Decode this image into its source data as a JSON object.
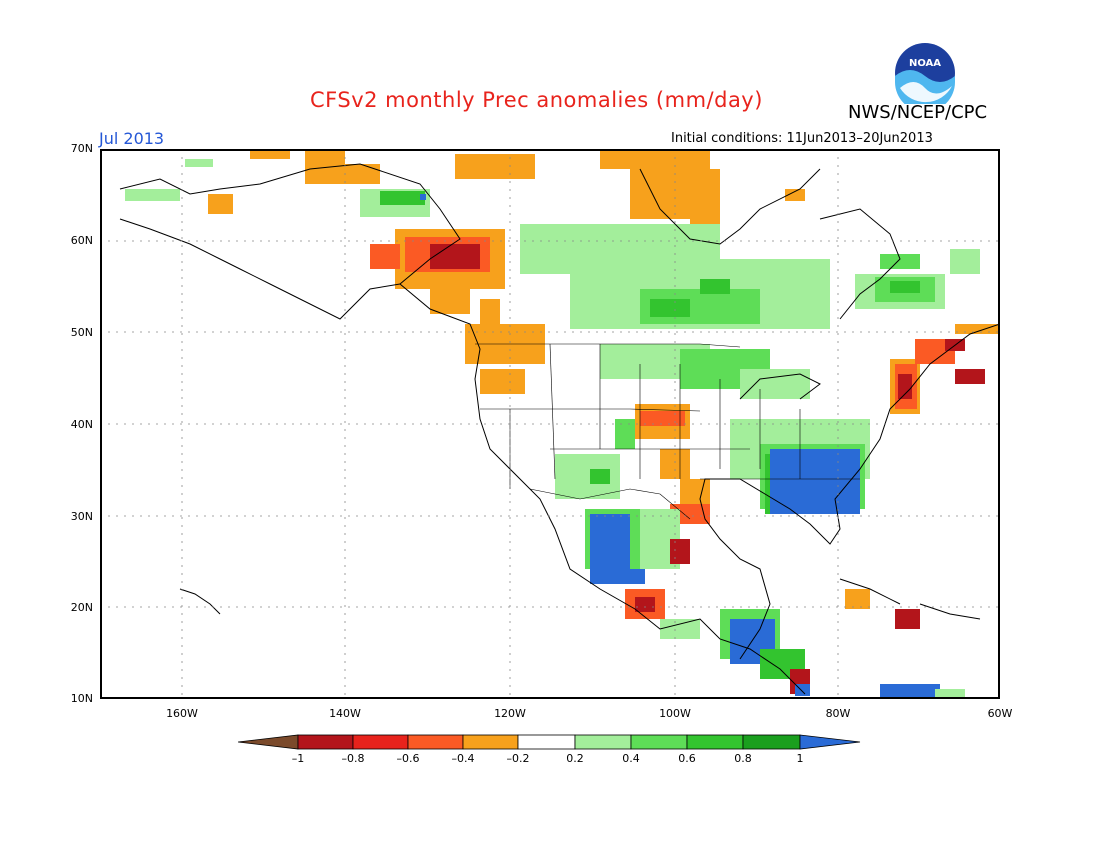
{
  "header": {
    "title": "CFSv2 monthly Prec anomalies (mm/day)",
    "agency": "NWS/NCEP/CPC",
    "month": "Jul 2013",
    "initial_conditions": "Initial conditions: 11Jun2013–20Jun2013",
    "logo_text": "NOAA"
  },
  "map": {
    "lat_labels": [
      "70N",
      "60N",
      "50N",
      "40N",
      "30N",
      "20N",
      "10N"
    ],
    "lon_labels": [
      "160W",
      "140W",
      "120W",
      "100W",
      "80W",
      "60W"
    ],
    "grid": "dotted"
  },
  "colorbar": {
    "ticks": [
      "–1",
      "–0.8",
      "–0.6",
      "–0.4",
      "–0.2",
      "0.2",
      "0.4",
      "0.6",
      "0.8",
      "1"
    ],
    "colors": {
      "lt_-1": "#7b4a2b",
      "-1_-0.8": "#b3151b",
      "-0.8_-0.6": "#e8231c",
      "-0.6_-0.4": "#fb5a24",
      "-0.4_-0.2": "#f7a11c",
      "-0.2_0.2": "#ffffff",
      "0.2_0.4": "#a3ee9b",
      "0.4_0.6": "#5edd57",
      "0.6_0.8": "#33c42f",
      "0.8_1": "#1a9f1e",
      "gt_1": "#2a6bd6"
    }
  }
}
